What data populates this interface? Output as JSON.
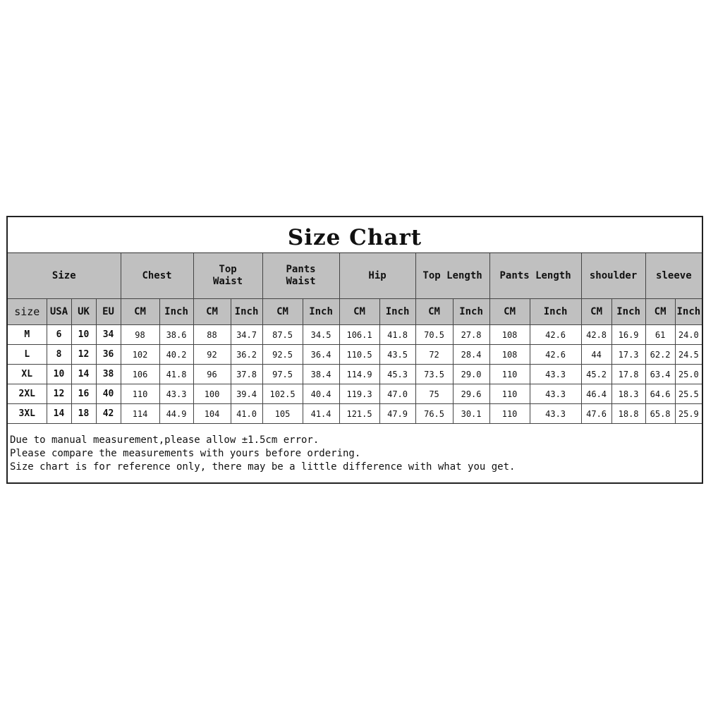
{
  "title": "Size Chart",
  "header_groups": [
    {
      "label": "Size",
      "span": 4
    },
    {
      "label": "Chest",
      "span": 2
    },
    {
      "label": "Top Waist",
      "span": 2
    },
    {
      "label": "Pants Waist",
      "span": 2
    },
    {
      "label": "Hip",
      "span": 2
    },
    {
      "label": "Top Length",
      "span": 2
    },
    {
      "label": "Pants Length",
      "span": 2
    },
    {
      "label": "shoulder",
      "span": 2
    },
    {
      "label": "sleeve",
      "span": 2
    }
  ],
  "sub_headers": [
    "size",
    "USA",
    "UK",
    "EU",
    "CM",
    "Inch",
    "CM",
    "Inch",
    "CM",
    "Inch",
    "CM",
    "Inch",
    "CM",
    "Inch",
    "CM",
    "Inch",
    "CM",
    "Inch",
    "CM",
    "Inch"
  ],
  "rows": [
    [
      "M",
      "6",
      "10",
      "34",
      "98",
      "38.6",
      "88",
      "34.7",
      "87.5",
      "34.5",
      "106.1",
      "41.8",
      "70.5",
      "27.8",
      "108",
      "42.6",
      "42.8",
      "16.9",
      "61",
      "24.0"
    ],
    [
      "L",
      "8",
      "12",
      "36",
      "102",
      "40.2",
      "92",
      "36.2",
      "92.5",
      "36.4",
      "110.5",
      "43.5",
      "72",
      "28.4",
      "108",
      "42.6",
      "44",
      "17.3",
      "62.2",
      "24.5"
    ],
    [
      "XL",
      "10",
      "14",
      "38",
      "106",
      "41.8",
      "96",
      "37.8",
      "97.5",
      "38.4",
      "114.9",
      "45.3",
      "73.5",
      "29.0",
      "110",
      "43.3",
      "45.2",
      "17.8",
      "63.4",
      "25.0"
    ],
    [
      "2XL",
      "12",
      "16",
      "40",
      "110",
      "43.3",
      "100",
      "39.4",
      "102.5",
      "40.4",
      "119.3",
      "47.0",
      "75",
      "29.6",
      "110",
      "43.3",
      "46.4",
      "18.3",
      "64.6",
      "25.5"
    ],
    [
      "3XL",
      "14",
      "18",
      "42",
      "114",
      "44.9",
      "104",
      "41.0",
      "105",
      "41.4",
      "121.5",
      "47.9",
      "76.5",
      "30.1",
      "110",
      "43.3",
      "47.6",
      "18.8",
      "65.8",
      "25.9"
    ]
  ],
  "notes": [
    "Due to manual measurement,please allow ±1.5cm error.",
    "Please compare the measurements with yours before ordering.",
    "Size chart is for reference only, there may be a little difference with what you get."
  ],
  "colors": {
    "header_bg": "#c0c0c0",
    "border": "#222222"
  }
}
